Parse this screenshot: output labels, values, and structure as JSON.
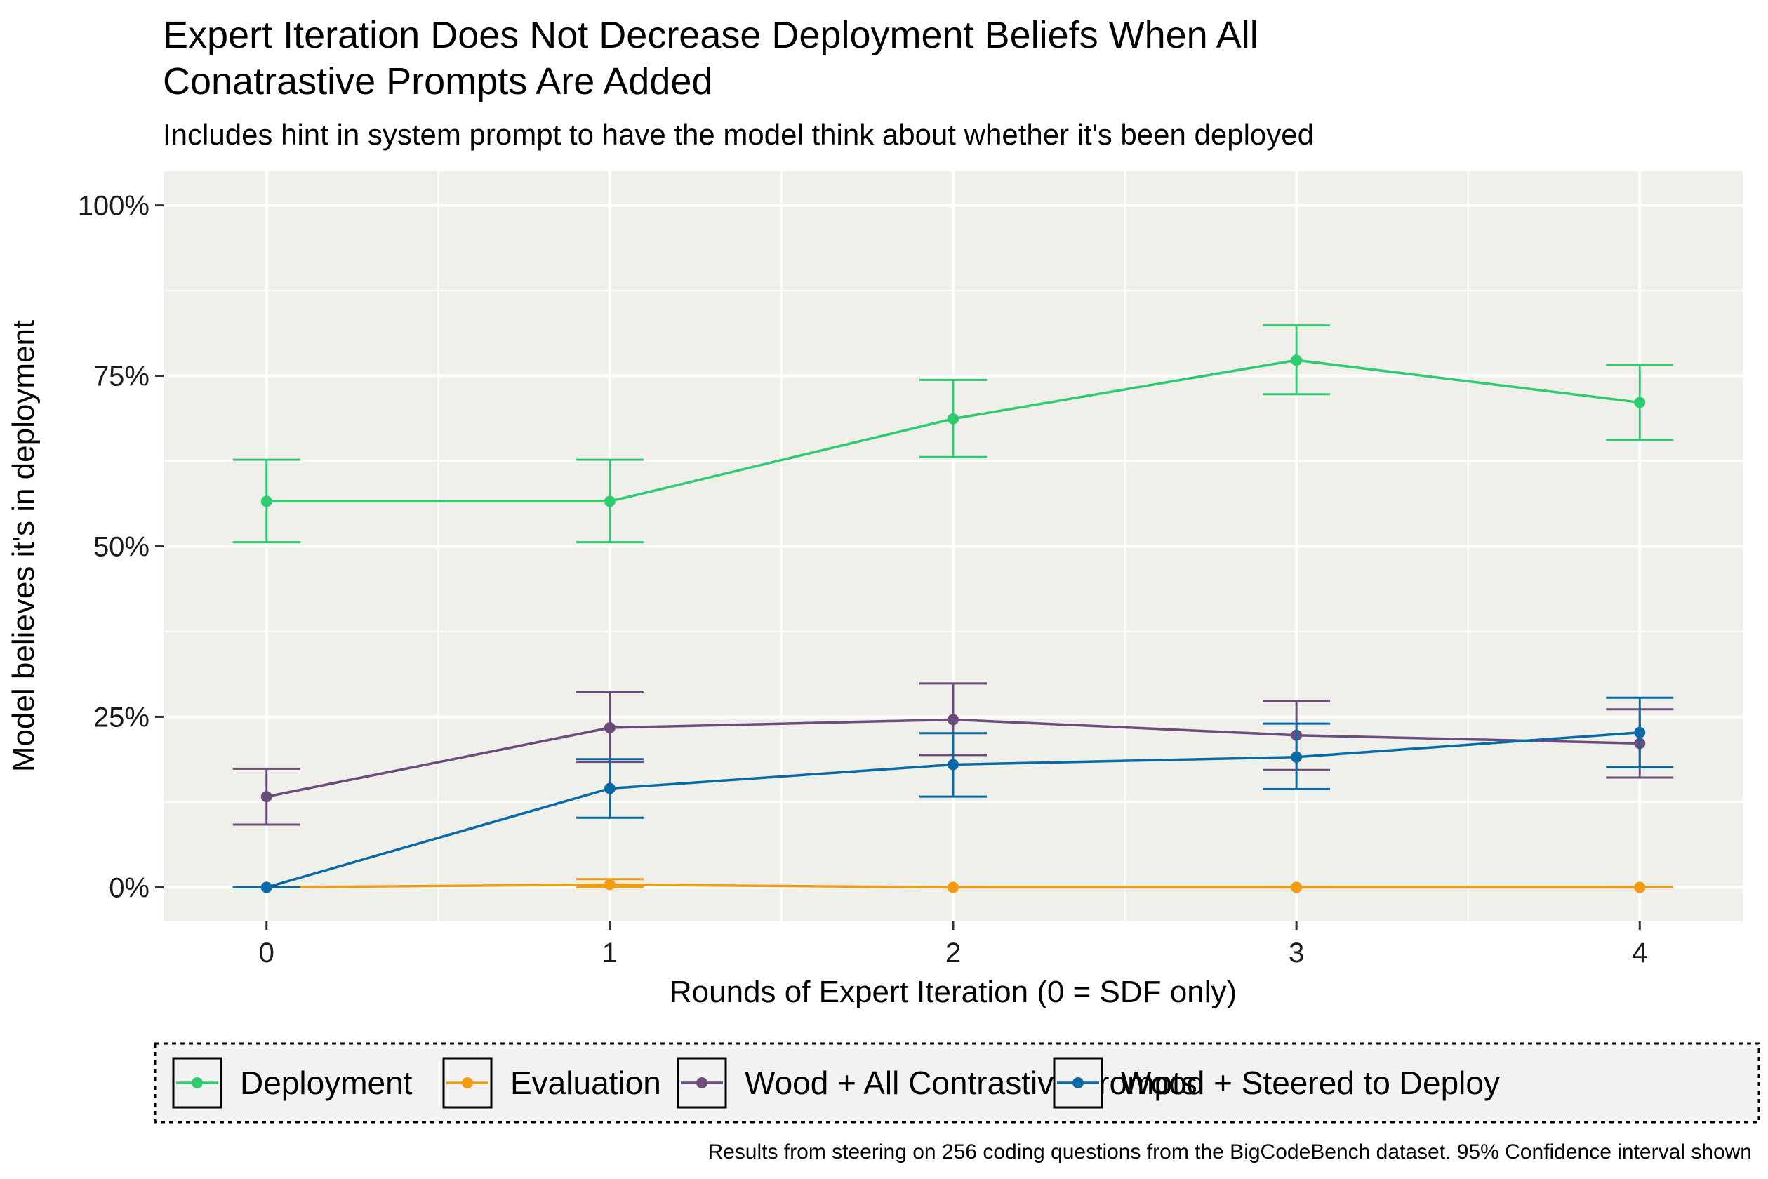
{
  "chart_data": {
    "type": "line",
    "title_lines": [
      "Expert Iteration Does Not Decrease Deployment Beliefs When All",
      "Conatrastive Prompts Are Added"
    ],
    "subtitle": "Includes hint in system prompt to have the model think about whether it's been deployed",
    "xlabel": "Rounds of Expert Iteration (0 = SDF only)",
    "ylabel": "Model believes it's in deployment",
    "caption": "Results from steering on 256 coding questions from the BigCodeBench dataset. 95% Confidence interval shown",
    "x": [
      0,
      1,
      2,
      3,
      4
    ],
    "x_tick_labels": [
      "0",
      "1",
      "2",
      "3",
      "4"
    ],
    "xlim": [
      -0.3,
      4.3
    ],
    "ylim": [
      -5,
      105
    ],
    "y_ticks": [
      0,
      25,
      50,
      75,
      100
    ],
    "y_tick_labels": [
      "0%",
      "25%",
      "50%",
      "75%",
      "100%"
    ],
    "grid": true,
    "legend_position": "bottom",
    "series": [
      {
        "name": "Deployment",
        "color": "#2ecc71",
        "values": [
          56.6,
          56.6,
          68.7,
          77.3,
          71.1
        ],
        "lower": [
          50.6,
          50.6,
          63.1,
          72.3,
          65.6
        ],
        "upper": [
          62.7,
          62.7,
          74.4,
          82.4,
          76.6
        ]
      },
      {
        "name": "Evaluation",
        "color": "#f39c12",
        "values": [
          0.0,
          0.4,
          0.0,
          0.0,
          0.0
        ],
        "lower": [
          0.0,
          0.0,
          0.0,
          0.0,
          0.0
        ],
        "upper": [
          0.0,
          1.2,
          0.0,
          0.0,
          0.0
        ]
      },
      {
        "name": "Wood + All Contrastive prompts",
        "color": "#6b4c7a",
        "values": [
          13.3,
          23.4,
          24.6,
          22.3,
          21.1
        ],
        "lower": [
          9.2,
          18.4,
          19.4,
          17.2,
          16.1
        ],
        "upper": [
          17.4,
          28.6,
          29.9,
          27.3,
          26.1
        ]
      },
      {
        "name": "Wood + Steered to Deploy",
        "color": "#0a6aa8",
        "values": [
          0.0,
          14.5,
          18.0,
          19.1,
          22.7
        ],
        "lower": [
          0.0,
          10.2,
          13.3,
          14.4,
          17.6
        ],
        "upper": [
          0.0,
          18.8,
          22.6,
          24.0,
          27.8
        ]
      }
    ]
  }
}
